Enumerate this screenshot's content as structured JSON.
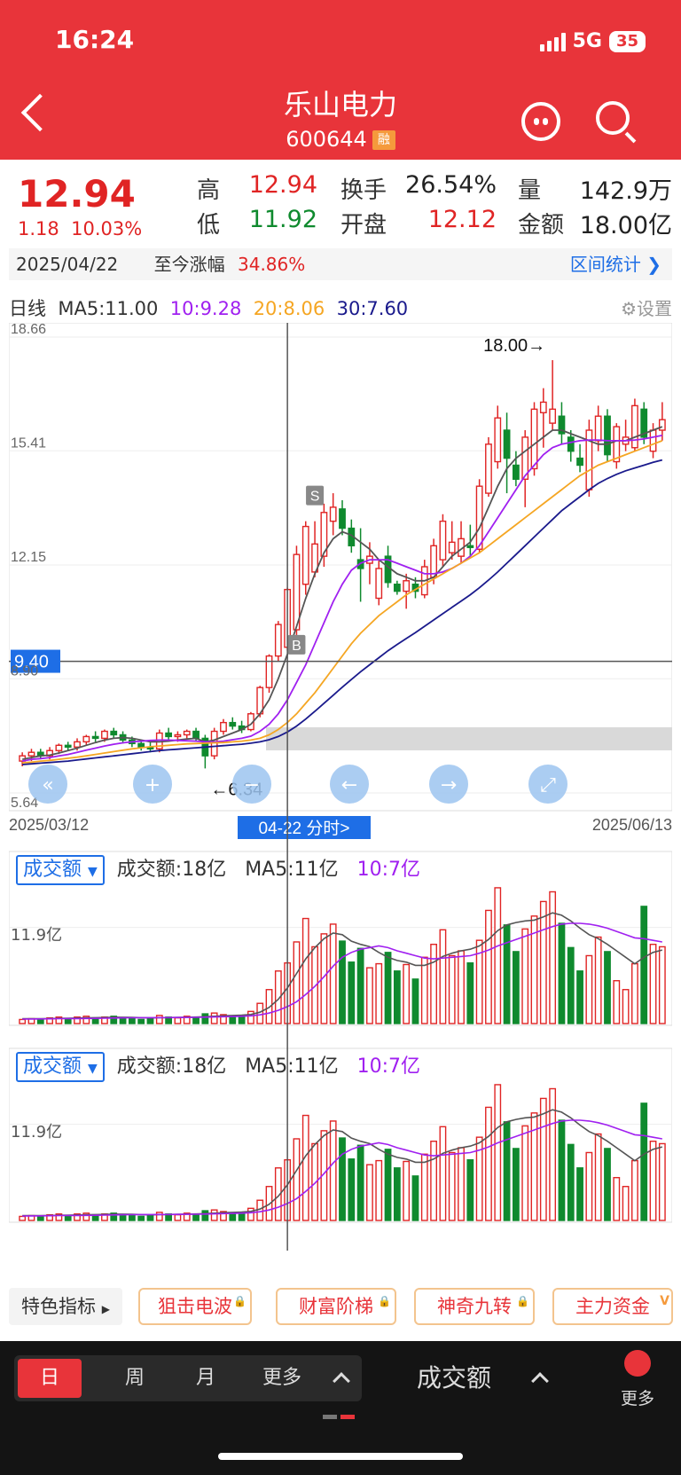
{
  "status": {
    "time": "16:24",
    "network": "5G",
    "battery": "35"
  },
  "header": {
    "title": "乐山电力",
    "code": "600644",
    "badge": "融"
  },
  "quote": {
    "price": "12.94",
    "change": "1.18",
    "change_pct": "10.03%",
    "high_label": "高",
    "high": "12.94",
    "low_label": "低",
    "low": "11.92",
    "turnover_label": "换手",
    "turnover": "26.54%",
    "open_label": "开盘",
    "open": "12.12",
    "volume_label": "量",
    "volume": "142.9万",
    "amount_label": "金额",
    "amount": "18.00亿",
    "date": "2025/04/22",
    "since_label": "至今涨幅",
    "since_pct": "34.86%",
    "range_stats": "区间统计"
  },
  "kline": {
    "period_label": "日线",
    "ma5": "MA5:11.00",
    "ma10": "10:9.28",
    "ma20": "20:8.06",
    "ma30": "30:7.60",
    "settings": "设置",
    "y_ticks": [
      "18.66",
      "15.41",
      "12.15",
      "8.90",
      "5.64"
    ],
    "crosshair_price": "9.40",
    "max_label": "18.00→",
    "min_label": "←6.34",
    "start_date": "2025/03/12",
    "end_date": "2025/06/13",
    "cursor_date": "04-22 分时>",
    "buy_marker": "B",
    "sell_marker": "S"
  },
  "volume_panel_1": {
    "selector": "成交额",
    "value": "成交额:18亿",
    "ma5": "MA5:11亿",
    "ma10": "10:7亿",
    "y_tick": "11.9亿"
  },
  "volume_panel_2": {
    "selector": "成交额",
    "value": "成交额:18亿",
    "ma5": "MA5:11亿",
    "ma10": "10:7亿",
    "y_tick": "11.9亿"
  },
  "indicators": {
    "special": "特色指标",
    "items": [
      "狙击电波",
      "财富阶梯",
      "神奇九转",
      "主力资金"
    ]
  },
  "bottom": {
    "day": "日",
    "week": "周",
    "month": "月",
    "more_period": "更多",
    "indicator": "成交额",
    "more": "更多"
  },
  "colors": {
    "up": "#e02424",
    "down": "#0f8a2e",
    "ma5": "#555555",
    "ma10": "#a020f0",
    "ma20": "#f5a623",
    "ma30": "#1a1a8c",
    "header": "#e8343a"
  },
  "chart_data": {
    "type": "candlestick",
    "y_range": [
      5.64,
      18.66
    ],
    "candles": [
      [
        6.55,
        6.8,
        6.4,
        6.7
      ],
      [
        6.7,
        6.9,
        6.55,
        6.8
      ],
      [
        6.8,
        6.9,
        6.6,
        6.7
      ],
      [
        6.7,
        6.95,
        6.6,
        6.85
      ],
      [
        6.85,
        7.05,
        6.75,
        7.0
      ],
      [
        7.0,
        7.1,
        6.85,
        6.95
      ],
      [
        6.95,
        7.2,
        6.85,
        7.1
      ],
      [
        7.1,
        7.3,
        7.0,
        7.25
      ],
      [
        7.25,
        7.4,
        7.1,
        7.2
      ],
      [
        7.2,
        7.45,
        7.1,
        7.4
      ],
      [
        7.4,
        7.5,
        7.2,
        7.3
      ],
      [
        7.3,
        7.4,
        7.05,
        7.15
      ],
      [
        7.15,
        7.25,
        6.95,
        7.05
      ],
      [
        7.05,
        7.15,
        6.85,
        6.95
      ],
      [
        6.95,
        7.1,
        6.8,
        6.9
      ],
      [
        6.9,
        7.45,
        6.8,
        7.35
      ],
      [
        7.35,
        7.5,
        7.15,
        7.25
      ],
      [
        7.25,
        7.4,
        7.1,
        7.3
      ],
      [
        7.3,
        7.45,
        7.2,
        7.4
      ],
      [
        7.4,
        7.5,
        7.1,
        7.2
      ],
      [
        7.2,
        7.3,
        6.34,
        6.7
      ],
      [
        6.7,
        7.5,
        6.6,
        7.4
      ],
      [
        7.4,
        7.75,
        7.3,
        7.65
      ],
      [
        7.65,
        7.8,
        7.45,
        7.55
      ],
      [
        7.55,
        7.7,
        7.35,
        7.45
      ],
      [
        7.45,
        7.95,
        7.4,
        7.9
      ],
      [
        7.9,
        8.7,
        7.8,
        8.65
      ],
      [
        8.65,
        9.6,
        8.5,
        9.55
      ],
      [
        9.55,
        10.55,
        9.4,
        10.45
      ],
      [
        9.8,
        11.5,
        9.7,
        11.45
      ],
      [
        10.3,
        12.7,
        10.1,
        12.45
      ],
      [
        11.6,
        13.4,
        11.3,
        13.25
      ],
      [
        11.95,
        13.4,
        11.8,
        12.75
      ],
      [
        12.4,
        13.9,
        12.1,
        13.65
      ],
      [
        13.4,
        14.2,
        13.0,
        13.8
      ],
      [
        13.75,
        14.0,
        13.0,
        13.2
      ],
      [
        13.2,
        13.45,
        12.5,
        12.7
      ],
      [
        12.3,
        13.2,
        11.1,
        12.05
      ],
      [
        12.2,
        12.8,
        11.6,
        12.4
      ],
      [
        11.2,
        12.3,
        11.0,
        12.05
      ],
      [
        12.4,
        12.7,
        11.5,
        11.65
      ],
      [
        11.6,
        11.7,
        11.3,
        11.4
      ],
      [
        11.4,
        11.9,
        10.9,
        11.7
      ],
      [
        11.6,
        11.8,
        11.2,
        11.4
      ],
      [
        11.3,
        12.3,
        11.2,
        12.1
      ],
      [
        11.8,
        12.9,
        11.6,
        12.7
      ],
      [
        12.3,
        13.6,
        12.1,
        13.4
      ],
      [
        12.5,
        13.4,
        12.3,
        12.8
      ],
      [
        12.4,
        13.4,
        12.2,
        12.9
      ],
      [
        12.7,
        13.3,
        12.4,
        12.65
      ],
      [
        12.6,
        14.6,
        12.5,
        14.4
      ],
      [
        14.2,
        15.8,
        14.1,
        15.6
      ],
      [
        15.1,
        16.7,
        14.9,
        16.35
      ],
      [
        16.0,
        16.5,
        14.2,
        15.2
      ],
      [
        15.0,
        15.4,
        14.4,
        14.6
      ],
      [
        14.6,
        16.0,
        13.8,
        15.8
      ],
      [
        14.9,
        16.8,
        14.7,
        16.6
      ],
      [
        16.5,
        17.2,
        15.5,
        16.8
      ],
      [
        16.2,
        18.0,
        16.0,
        16.6
      ],
      [
        16.4,
        16.8,
        15.6,
        15.9
      ],
      [
        15.8,
        16.0,
        15.1,
        15.4
      ],
      [
        15.2,
        15.6,
        14.8,
        15.0
      ],
      [
        14.3,
        16.3,
        14.1,
        16.0
      ],
      [
        15.7,
        16.7,
        15.4,
        16.4
      ],
      [
        16.4,
        16.6,
        15.1,
        15.3
      ],
      [
        15.1,
        16.2,
        14.9,
        16.1
      ],
      [
        15.6,
        16.3,
        15.4,
        15.8
      ],
      [
        15.5,
        16.9,
        15.4,
        16.7
      ],
      [
        16.6,
        16.8,
        15.6,
        15.8
      ],
      [
        15.4,
        16.2,
        15.2,
        16.0
      ],
      [
        16.0,
        16.8,
        15.7,
        16.3
      ]
    ],
    "ma5": [
      6.6,
      6.65,
      6.7,
      6.72,
      6.78,
      6.85,
      6.92,
      7.0,
      7.08,
      7.15,
      7.2,
      7.22,
      7.2,
      7.15,
      7.1,
      7.1,
      7.12,
      7.15,
      7.18,
      7.2,
      7.1,
      7.15,
      7.25,
      7.35,
      7.45,
      7.6,
      7.9,
      8.3,
      8.9,
      9.6,
      10.4,
      11.2,
      11.9,
      12.5,
      12.9,
      13.1,
      13.0,
      12.8,
      12.6,
      12.3,
      12.1,
      11.9,
      11.8,
      11.7,
      11.7,
      11.8,
      12.1,
      12.4,
      12.6,
      12.8,
      13.2,
      13.8,
      14.4,
      14.9,
      15.2,
      15.4,
      15.6,
      15.8,
      16.0,
      16.0,
      15.9,
      15.8,
      15.7,
      15.6,
      15.6,
      15.7,
      15.7,
      15.8,
      15.9,
      16.0,
      16.1
    ],
    "ma10": [
      6.55,
      6.6,
      6.62,
      6.65,
      6.7,
      6.74,
      6.8,
      6.86,
      6.92,
      6.98,
      7.03,
      7.07,
      7.1,
      7.12,
      7.14,
      7.15,
      7.15,
      7.14,
      7.13,
      7.12,
      7.1,
      7.1,
      7.12,
      7.16,
      7.2,
      7.26,
      7.4,
      7.6,
      7.9,
      8.3,
      8.8,
      9.3,
      9.9,
      10.5,
      11.1,
      11.6,
      12.0,
      12.2,
      12.3,
      12.3,
      12.3,
      12.2,
      12.1,
      12.0,
      11.9,
      11.9,
      11.95,
      12.05,
      12.2,
      12.4,
      12.7,
      13.1,
      13.5,
      13.9,
      14.3,
      14.7,
      15.0,
      15.3,
      15.5,
      15.6,
      15.65,
      15.7,
      15.72,
      15.72,
      15.7,
      15.7,
      15.7,
      15.72,
      15.75,
      15.8,
      15.85
    ],
    "ma20": [
      6.5,
      6.52,
      6.55,
      6.57,
      6.6,
      6.63,
      6.66,
      6.7,
      6.74,
      6.78,
      6.82,
      6.86,
      6.9,
      6.93,
      6.96,
      6.98,
      7.0,
      7.02,
      7.04,
      7.05,
      7.06,
      7.07,
      7.08,
      7.1,
      7.12,
      7.15,
      7.2,
      7.3,
      7.45,
      7.65,
      7.9,
      8.2,
      8.5,
      8.85,
      9.2,
      9.55,
      9.9,
      10.2,
      10.45,
      10.7,
      10.9,
      11.1,
      11.3,
      11.45,
      11.6,
      11.75,
      11.9,
      12.05,
      12.2,
      12.35,
      12.5,
      12.7,
      12.9,
      13.1,
      13.3,
      13.5,
      13.7,
      13.9,
      14.1,
      14.3,
      14.5,
      14.7,
      14.85,
      15.0,
      15.1,
      15.2,
      15.3,
      15.4,
      15.5,
      15.6,
      15.7
    ],
    "ma30": [
      6.45,
      6.47,
      6.49,
      6.51,
      6.53,
      6.55,
      6.58,
      6.61,
      6.64,
      6.67,
      6.7,
      6.73,
      6.76,
      6.79,
      6.82,
      6.85,
      6.87,
      6.89,
      6.91,
      6.93,
      6.95,
      6.97,
      6.99,
      7.01,
      7.03,
      7.06,
      7.1,
      7.16,
      7.25,
      7.38,
      7.55,
      7.75,
      7.97,
      8.2,
      8.43,
      8.66,
      8.88,
      9.1,
      9.3,
      9.5,
      9.7,
      9.88,
      10.05,
      10.22,
      10.4,
      10.58,
      10.76,
      10.94,
      11.12,
      11.3,
      11.5,
      11.72,
      11.95,
      12.2,
      12.45,
      12.7,
      12.95,
      13.2,
      13.45,
      13.7,
      13.9,
      14.1,
      14.3,
      14.48,
      14.62,
      14.74,
      14.84,
      14.92,
      15.0,
      15.08,
      15.15
    ],
    "amount": [
      0.5,
      0.6,
      0.5,
      0.7,
      0.8,
      0.6,
      0.8,
      0.9,
      0.7,
      0.8,
      0.9,
      0.6,
      0.7,
      0.5,
      0.6,
      1.0,
      0.8,
      0.7,
      0.9,
      0.8,
      1.2,
      1.3,
      1.1,
      0.9,
      1.0,
      1.5,
      2.5,
      4.2,
      6.5,
      7.5,
      10.1,
      13.0,
      9.5,
      11.1,
      12.3,
      10.2,
      7.6,
      9.3,
      6.9,
      7.4,
      8.8,
      6.5,
      7.3,
      5.5,
      8.2,
      9.8,
      11.6,
      8.4,
      9.0,
      7.5,
      10.3,
      14.0,
      16.8,
      12.2,
      8.9,
      11.7,
      13.3,
      15.1,
      16.3,
      12.4,
      9.4,
      6.5,
      8.4,
      10.7,
      8.9,
      5.3,
      4.2,
      7.4,
      14.5,
      9.8,
      9.5
    ],
    "amount_ma5": [
      0.6,
      0.6,
      0.6,
      0.62,
      0.64,
      0.66,
      0.68,
      0.7,
      0.72,
      0.75,
      0.78,
      0.78,
      0.76,
      0.72,
      0.7,
      0.72,
      0.74,
      0.76,
      0.78,
      0.8,
      0.84,
      0.9,
      0.96,
      1.0,
      1.04,
      1.12,
      1.4,
      2.0,
      3.0,
      4.4,
      6.2,
      8.0,
      9.4,
      10.5,
      11.2,
      11.0,
      10.2,
      9.8,
      9.5,
      8.8,
      8.2,
      7.8,
      7.6,
      7.2,
      7.2,
      7.6,
      8.3,
      8.7,
      9.0,
      9.2,
      9.6,
      10.4,
      11.5,
      12.2,
      12.5,
      12.7,
      12.8,
      13.2,
      13.7,
      13.4,
      12.7,
      11.8,
      11.0,
      10.5,
      9.8,
      9.0,
      8.2,
      7.4,
      8.2,
      8.8,
      9.1
    ],
    "amount_ma10": [
      0.55,
      0.56,
      0.57,
      0.58,
      0.6,
      0.61,
      0.62,
      0.63,
      0.64,
      0.66,
      0.68,
      0.7,
      0.71,
      0.72,
      0.72,
      0.73,
      0.74,
      0.75,
      0.76,
      0.77,
      0.79,
      0.81,
      0.84,
      0.87,
      0.9,
      0.96,
      1.08,
      1.3,
      1.64,
      2.1,
      2.7,
      3.6,
      4.6,
      5.8,
      7.1,
      8.2,
      8.8,
      9.2,
      9.4,
      9.6,
      9.4,
      9.0,
      8.7,
      8.4,
      8.1,
      8.0,
      8.1,
      8.2,
      8.3,
      8.4,
      8.7,
      9.1,
      9.6,
      10.0,
      10.4,
      10.8,
      11.2,
      11.6,
      12.0,
      12.3,
      12.4,
      12.4,
      12.3,
      12.1,
      11.8,
      11.4,
      11.0,
      10.6,
      10.5,
      10.3,
      10.1
    ]
  }
}
